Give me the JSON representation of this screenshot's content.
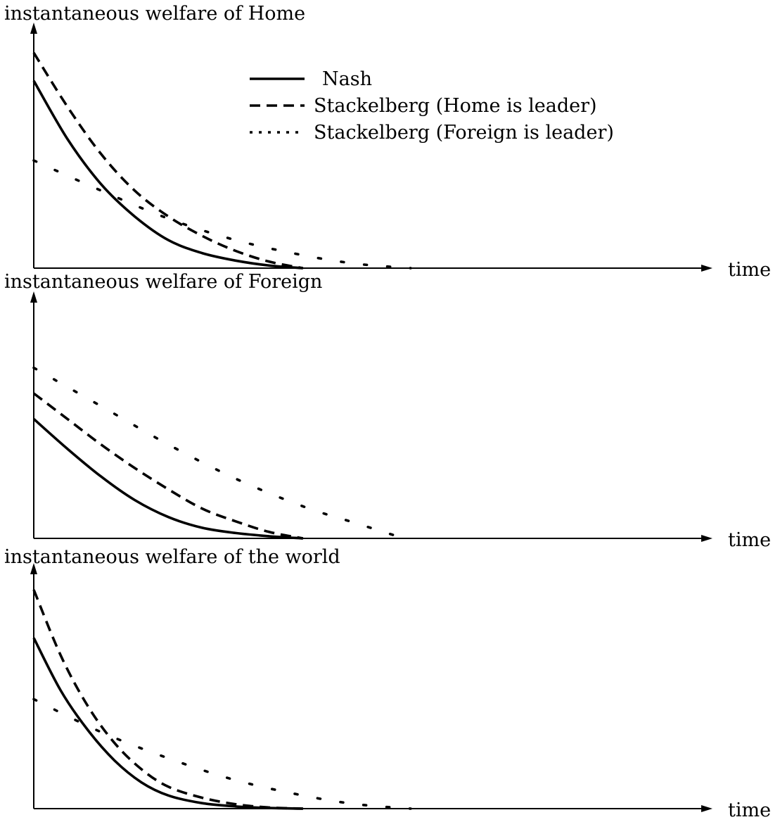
{
  "legend": {
    "entries": [
      {
        "label": "Nash",
        "style": "solid"
      },
      {
        "label": "Stackelberg (Home is leader)",
        "style": "dashed"
      },
      {
        "label": "Stackelberg (Foreign is leader)",
        "style": "dotted"
      }
    ]
  },
  "chart_data": [
    {
      "type": "line",
      "ylabel": "instantaneous welfare of Home",
      "xlabel": "time",
      "xlim": [
        0,
        1
      ],
      "ylim": [
        0,
        1
      ],
      "grid": false,
      "legend_placement": "top-center",
      "series": [
        {
          "name": "Nash",
          "style": "solid",
          "x": [
            0,
            0.05,
            0.1,
            0.15,
            0.2,
            0.25,
            0.3,
            0.35,
            0.4
          ],
          "y": [
            0.87,
            0.6,
            0.39,
            0.24,
            0.13,
            0.07,
            0.035,
            0.012,
            0
          ]
        },
        {
          "name": "Stackelberg (Home is leader)",
          "style": "dashed",
          "x": [
            0,
            0.05,
            0.1,
            0.15,
            0.2,
            0.25,
            0.3,
            0.35,
            0.4
          ],
          "y": [
            1.0,
            0.75,
            0.53,
            0.36,
            0.24,
            0.15,
            0.08,
            0.03,
            0
          ]
        },
        {
          "name": "Stackelberg (Foreign is leader)",
          "style": "dotted",
          "x": [
            0,
            0.1,
            0.2,
            0.3,
            0.4,
            0.48,
            0.56
          ],
          "y": [
            0.5,
            0.36,
            0.23,
            0.13,
            0.06,
            0.02,
            0
          ]
        }
      ]
    },
    {
      "type": "line",
      "ylabel": "instantaneous welfare of Foreign",
      "xlabel": "time",
      "xlim": [
        0,
        1
      ],
      "ylim": [
        0,
        1
      ],
      "grid": false,
      "series": [
        {
          "name": "Nash",
          "style": "solid",
          "x": [
            0,
            0.05,
            0.1,
            0.15,
            0.2,
            0.25,
            0.3,
            0.35,
            0.4
          ],
          "y": [
            0.56,
            0.42,
            0.29,
            0.18,
            0.1,
            0.05,
            0.025,
            0.01,
            0
          ]
        },
        {
          "name": "Stackelberg (Home is leader)",
          "style": "dashed",
          "x": [
            0,
            0.05,
            0.1,
            0.15,
            0.2,
            0.25,
            0.3,
            0.35,
            0.4
          ],
          "y": [
            0.68,
            0.56,
            0.44,
            0.33,
            0.23,
            0.14,
            0.08,
            0.03,
            0
          ]
        },
        {
          "name": "Stackelberg (Foreign is leader)",
          "style": "dotted",
          "x": [
            0,
            0.1,
            0.2,
            0.3,
            0.4,
            0.48,
            0.55
          ],
          "y": [
            0.8,
            0.62,
            0.44,
            0.28,
            0.15,
            0.07,
            0
          ]
        }
      ]
    },
    {
      "type": "line",
      "ylabel": "instantaneous welfare of the world",
      "xlabel": "time",
      "xlim": [
        0,
        1
      ],
      "ylim": [
        0,
        1
      ],
      "grid": false,
      "series": [
        {
          "name": "Nash",
          "style": "solid",
          "x": [
            0,
            0.04,
            0.08,
            0.12,
            0.16,
            0.2,
            0.25,
            0.3,
            0.35,
            0.4
          ],
          "y": [
            0.78,
            0.54,
            0.36,
            0.22,
            0.12,
            0.06,
            0.025,
            0.01,
            0.003,
            0
          ]
        },
        {
          "name": "Stackelberg (Home is leader)",
          "style": "dashed",
          "x": [
            0,
            0.04,
            0.08,
            0.12,
            0.16,
            0.2,
            0.25,
            0.3,
            0.35,
            0.4
          ],
          "y": [
            1.0,
            0.7,
            0.47,
            0.3,
            0.18,
            0.1,
            0.05,
            0.02,
            0.005,
            0
          ]
        },
        {
          "name": "Stackelberg (Foreign is leader)",
          "style": "dotted",
          "x": [
            0,
            0.1,
            0.2,
            0.3,
            0.4,
            0.48,
            0.56
          ],
          "y": [
            0.5,
            0.35,
            0.23,
            0.13,
            0.06,
            0.02,
            0
          ]
        }
      ]
    }
  ]
}
